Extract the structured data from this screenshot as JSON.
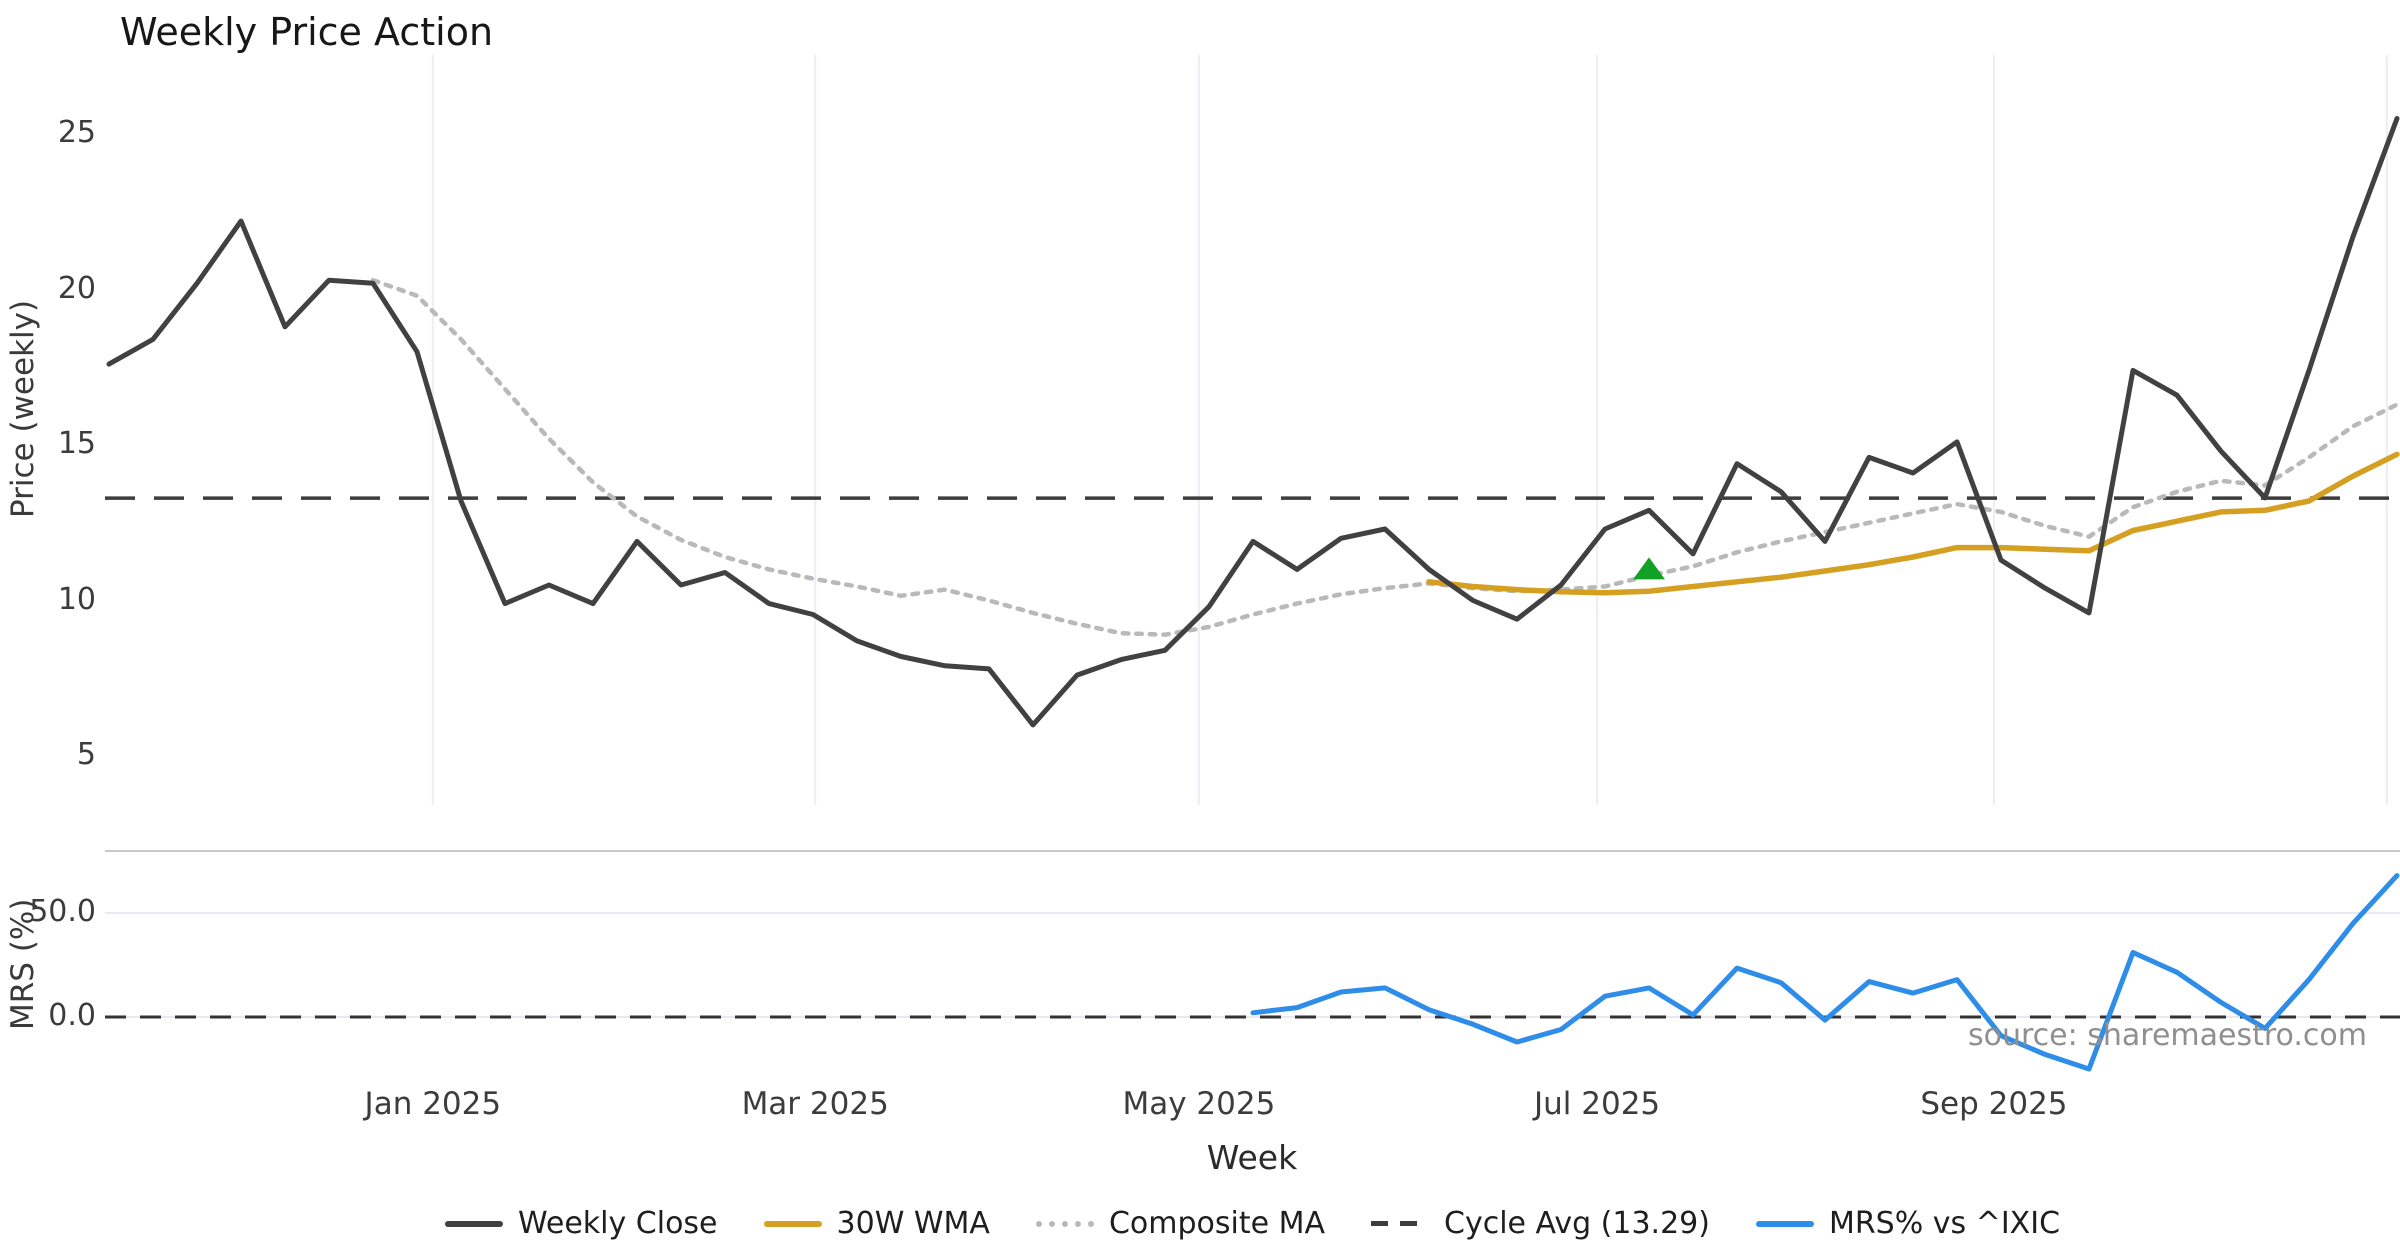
{
  "page": {
    "title": "Weekly Price Action",
    "source_note": "source: sharemaestro.com"
  },
  "chart_data": {
    "type": "line",
    "title": "Weekly Price Action",
    "x_axis": {
      "label": "Week",
      "tick_labels": [
        "Jan 2025",
        "Mar 2025",
        "May 2025",
        "Jul 2025",
        "Sep 2025"
      ],
      "tick_week_positions": [
        7.36,
        16.05,
        24.77,
        33.82,
        42.84
      ],
      "gridline_weeks": [
        7.36,
        16.05,
        24.77,
        33.82,
        42.84,
        51.77
      ],
      "weeks_total": 53
    },
    "price_panel": {
      "ylabel": "Price (weekly)",
      "ytick_values": [
        25,
        20,
        15,
        10,
        5
      ],
      "y_range_approx": [
        3.5,
        27.5
      ],
      "grid": "vertical-only",
      "cycle_avg": {
        "label": "Cycle Avg (13.29)",
        "value": 13.29,
        "color": "#3d3d3d",
        "style": "dashed"
      },
      "signal_marker": {
        "shape": "triangle-up",
        "color": "#12a127",
        "week": 35,
        "value": 11.0
      },
      "series": [
        {
          "id": "weekly_close",
          "name": "Weekly Close",
          "color": "#414141",
          "style": "solid",
          "start_week": 0,
          "values": [
            17.6,
            18.4,
            20.2,
            22.2,
            18.8,
            20.3,
            20.2,
            18.0,
            13.2,
            9.9,
            10.5,
            9.9,
            11.9,
            10.5,
            10.9,
            9.9,
            9.55,
            8.7,
            8.2,
            7.9,
            7.8,
            6.0,
            7.6,
            8.1,
            8.4,
            9.8,
            11.9,
            11.0,
            12.0,
            12.3,
            11.0,
            10.0,
            9.4,
            10.5,
            12.3,
            12.9,
            11.5,
            14.4,
            13.5,
            11.9,
            14.6,
            14.1,
            15.1,
            11.3,
            10.4,
            9.6,
            17.4,
            16.6,
            14.8,
            13.3,
            17.4,
            21.7,
            25.5
          ]
        },
        {
          "id": "wma_30w",
          "name": "30W WMA",
          "color": "#d5a021",
          "style": "solid",
          "start_week": 30,
          "values": [
            10.6,
            10.45,
            10.35,
            10.28,
            10.25,
            10.3,
            10.45,
            10.6,
            10.75,
            10.95,
            11.15,
            11.4,
            11.7,
            11.7,
            11.65,
            11.6,
            12.25,
            12.55,
            12.85,
            12.9,
            13.2,
            14.0,
            14.7
          ]
        },
        {
          "id": "composite_ma",
          "name": "Composite MA",
          "color": "#b9b9b9",
          "style": "dotted",
          "start_week": 6,
          "values": [
            20.3,
            19.8,
            18.4,
            16.8,
            15.2,
            13.8,
            12.7,
            11.95,
            11.4,
            11.0,
            10.7,
            10.45,
            10.15,
            10.35,
            10.0,
            9.6,
            9.25,
            8.95,
            8.9,
            9.15,
            9.55,
            9.9,
            10.2,
            10.4,
            10.55,
            10.4,
            10.3,
            10.35,
            10.45,
            10.8,
            11.1,
            11.55,
            11.9,
            12.2,
            12.5,
            12.8,
            13.1,
            12.85,
            12.4,
            12.05,
            13.0,
            13.5,
            13.85,
            13.7,
            14.6,
            15.6,
            16.3
          ]
        }
      ]
    },
    "mrs_panel": {
      "ylabel": "MRS (%)",
      "ytick_labels": [
        "50.0",
        "0.0"
      ],
      "ytick_values": [
        50,
        0
      ],
      "zero_line": {
        "style": "dashed",
        "color": "#333333"
      },
      "series": [
        {
          "id": "mrs",
          "name": "MRS% vs ^IXIC",
          "color": "#2d8de8",
          "style": "solid",
          "start_week": 26,
          "values": [
            2,
            4.5,
            12,
            14,
            3.5,
            -3.5,
            -12,
            -6,
            10,
            14,
            1,
            23.5,
            16.5,
            -1.5,
            17,
            11.5,
            18,
            -9,
            -18,
            -25,
            31,
            21.5,
            7,
            -5.5,
            18,
            45,
            68
          ]
        }
      ]
    }
  },
  "legend": {
    "items": [
      {
        "label": "Weekly Close",
        "color": "#414141",
        "style": "solid"
      },
      {
        "label": "30W WMA",
        "color": "#d5a021",
        "style": "solid"
      },
      {
        "label": "Composite MA",
        "color": "#b9b9b9",
        "style": "dotted"
      },
      {
        "label": "Cycle Avg (13.29)",
        "color": "#3d3d3d",
        "style": "dashed"
      },
      {
        "label": "MRS% vs ^IXIC",
        "color": "#2d8de8",
        "style": "solid"
      }
    ]
  }
}
